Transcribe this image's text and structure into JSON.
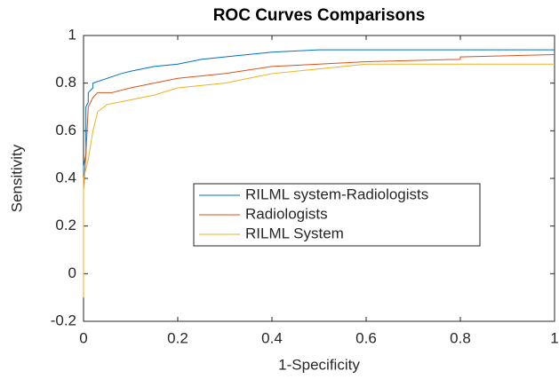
{
  "chart_data": {
    "type": "line",
    "title": "ROC Curves Comparisons",
    "x_label": "1-Specificity",
    "y_label": "Sensitivity",
    "xlim": [
      0,
      1
    ],
    "ylim": [
      -0.2,
      1
    ],
    "xticks": [
      0,
      0.2,
      0.4,
      0.6,
      0.8,
      1
    ],
    "yticks": [
      -0.2,
      0,
      0.2,
      0.4,
      0.6,
      0.8,
      1
    ],
    "grid": false,
    "legend": "center",
    "series": [
      {
        "name": "RILML system-Radiologists",
        "color": "#0072BD",
        "x": [
          0,
          0,
          0.005,
          0.005,
          0.01,
          0.01,
          0.02,
          0.02,
          0.05,
          0.08,
          0.1,
          0.15,
          0.2,
          0.25,
          0.3,
          0.4,
          0.5,
          1
        ],
        "values": [
          -0.1,
          0.45,
          0.5,
          0.7,
          0.72,
          0.76,
          0.78,
          0.8,
          0.82,
          0.84,
          0.85,
          0.87,
          0.88,
          0.9,
          0.91,
          0.93,
          0.94,
          0.94
        ]
      },
      {
        "name": "Radiologists",
        "color": "#D95319",
        "x": [
          0,
          0,
          0.005,
          0.01,
          0.02,
          0.03,
          0.06,
          0.1,
          0.15,
          0.2,
          0.3,
          0.4,
          0.5,
          0.6,
          0.8,
          0.8,
          1
        ],
        "values": [
          -0.1,
          0.35,
          0.5,
          0.7,
          0.74,
          0.76,
          0.76,
          0.78,
          0.8,
          0.82,
          0.84,
          0.87,
          0.88,
          0.89,
          0.9,
          0.91,
          0.92
        ]
      },
      {
        "name": "RILML System",
        "color": "#EDB120",
        "x": [
          0,
          0,
          0.01,
          0.02,
          0.03,
          0.05,
          0.1,
          0.15,
          0.2,
          0.3,
          0.35,
          0.4,
          0.5,
          0.55,
          0.6,
          1
        ],
        "values": [
          -0.1,
          0.4,
          0.48,
          0.6,
          0.68,
          0.71,
          0.73,
          0.75,
          0.78,
          0.8,
          0.82,
          0.84,
          0.86,
          0.87,
          0.88,
          0.88
        ]
      }
    ]
  }
}
